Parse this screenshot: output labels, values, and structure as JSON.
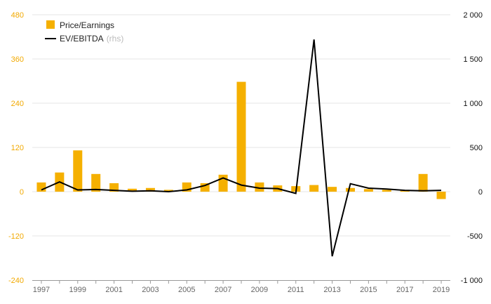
{
  "colors": {
    "bar": "#f5b000",
    "line": "#000000",
    "left_axis_text": "#f2a900",
    "right_axis_text": "#111111",
    "grid": "#e6e6e6"
  },
  "legend": {
    "bar_label": "Price/Earnings",
    "line_label": "EV/EBITDA",
    "line_suffix": "(rhs)"
  },
  "chart_data": {
    "type": "bar",
    "categories": [
      "1997",
      "1998",
      "1999",
      "2000",
      "2001",
      "2002",
      "2003",
      "2004",
      "2005",
      "2006",
      "2007",
      "2008",
      "2009",
      "2010",
      "2011",
      "2012",
      "2013",
      "2014",
      "2015",
      "2016",
      "2017",
      "2018",
      "2019"
    ],
    "x_tick_labels": [
      "1997",
      "1999",
      "2001",
      "2003",
      "2005",
      "2007",
      "2009",
      "2011",
      "2013",
      "2015",
      "2017",
      "2019"
    ],
    "series": [
      {
        "name": "Price/Earnings",
        "type": "bar",
        "axis": "left",
        "values": [
          25,
          52,
          112,
          48,
          23,
          8,
          10,
          5,
          25,
          23,
          46,
          298,
          25,
          17,
          15,
          18,
          13,
          10,
          7,
          5,
          4,
          48,
          -20
        ]
      },
      {
        "name": "EV/EBITDA (rhs)",
        "type": "line",
        "axis": "right",
        "values": [
          20,
          110,
          20,
          25,
          15,
          5,
          10,
          0,
          20,
          70,
          155,
          75,
          40,
          35,
          -20,
          1720,
          -730,
          90,
          40,
          30,
          15,
          10,
          15
        ]
      }
    ],
    "y_left": {
      "ylim": [
        -240,
        480
      ],
      "ticks": [
        -240,
        -120,
        0,
        120,
        240,
        360,
        480
      ]
    },
    "y_right": {
      "ylim": [
        -1000,
        2000
      ],
      "ticks": [
        -1000,
        -500,
        0,
        500,
        1000,
        1500,
        2000
      ],
      "tick_labels": [
        "-1 000",
        "-500",
        "0",
        "500",
        "1 000",
        "1 500",
        "2 000"
      ]
    },
    "grid": true,
    "legend_position": "top-left"
  }
}
